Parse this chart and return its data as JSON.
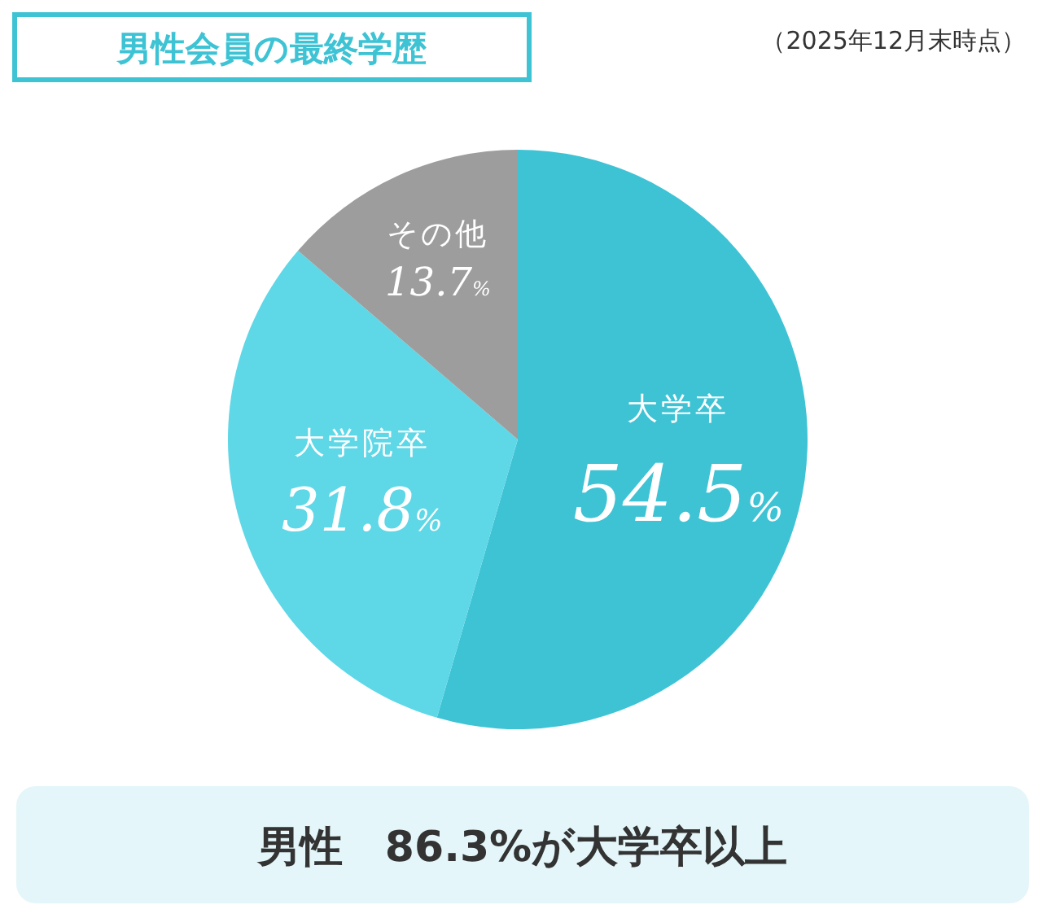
{
  "chart_data": {
    "type": "pie",
    "title": "男性会員の最終学歴",
    "subtitle": "（2025年12月末時点）",
    "categories": [
      "大学卒",
      "大学院卒",
      "その他"
    ],
    "values": [
      54.5,
      31.8,
      13.7
    ],
    "colors": [
      "#3ec3d5",
      "#5ed7e7",
      "#9d9d9d"
    ],
    "value_labels": [
      "54.5%",
      "31.8%",
      "13.7%"
    ],
    "annotations": [
      "男性　86.3%が大学卒以上"
    ]
  }
}
